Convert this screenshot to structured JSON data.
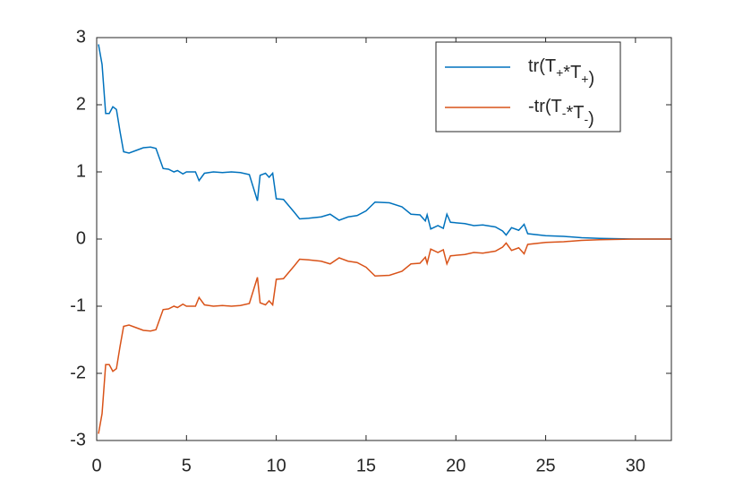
{
  "chart_data": {
    "type": "line",
    "x": [
      0.1,
      0.3,
      0.5,
      0.7,
      0.9,
      1.1,
      1.3,
      1.5,
      1.8,
      2.2,
      2.6,
      3.0,
      3.3,
      3.5,
      3.7,
      4.0,
      4.3,
      4.5,
      4.8,
      5.0,
      5.5,
      5.7,
      6.0,
      6.5,
      7.0,
      7.5,
      8.0,
      8.5,
      8.8,
      8.95,
      9.1,
      9.4,
      9.6,
      9.8,
      10.0,
      10.4,
      11.0,
      11.3,
      11.8,
      12.5,
      13.0,
      13.5,
      14.0,
      14.5,
      15.0,
      15.5,
      16.3,
      17.0,
      17.5,
      18.0,
      18.3,
      18.4,
      18.6,
      19.0,
      19.3,
      19.5,
      19.7,
      20.5,
      21.0,
      21.5,
      22.2,
      22.6,
      22.8,
      23.1,
      23.5,
      23.8,
      24.0,
      25.0,
      26.0,
      27.0,
      28.0,
      30.0,
      32.0
    ],
    "series": [
      {
        "name": "tr(T_+*T_+)",
        "color": "#0072bd",
        "values": [
          2.9,
          2.6,
          1.87,
          1.87,
          1.97,
          1.93,
          1.6,
          1.3,
          1.28,
          1.32,
          1.36,
          1.37,
          1.35,
          1.2,
          1.05,
          1.04,
          1.0,
          1.02,
          0.97,
          1.0,
          1.0,
          0.87,
          0.98,
          1.0,
          0.99,
          1.0,
          0.99,
          0.96,
          0.7,
          0.57,
          0.95,
          0.98,
          0.92,
          0.98,
          0.6,
          0.59,
          0.4,
          0.3,
          0.31,
          0.33,
          0.37,
          0.28,
          0.33,
          0.35,
          0.42,
          0.55,
          0.54,
          0.48,
          0.37,
          0.36,
          0.27,
          0.36,
          0.15,
          0.2,
          0.16,
          0.37,
          0.25,
          0.23,
          0.2,
          0.21,
          0.18,
          0.12,
          0.06,
          0.17,
          0.13,
          0.22,
          0.08,
          0.05,
          0.04,
          0.02,
          0.01,
          0.0,
          0.0
        ]
      },
      {
        "name": "-tr(T_-*T_-)",
        "color": "#d95319",
        "values": [
          -2.9,
          -2.6,
          -1.87,
          -1.87,
          -1.97,
          -1.93,
          -1.6,
          -1.3,
          -1.28,
          -1.32,
          -1.36,
          -1.37,
          -1.35,
          -1.2,
          -1.05,
          -1.04,
          -1.0,
          -1.02,
          -0.97,
          -1.0,
          -1.0,
          -0.87,
          -0.98,
          -1.0,
          -0.99,
          -1.0,
          -0.99,
          -0.96,
          -0.7,
          -0.57,
          -0.95,
          -0.98,
          -0.92,
          -0.98,
          -0.6,
          -0.59,
          -0.4,
          -0.3,
          -0.31,
          -0.33,
          -0.37,
          -0.28,
          -0.33,
          -0.35,
          -0.42,
          -0.55,
          -0.54,
          -0.48,
          -0.37,
          -0.36,
          -0.27,
          -0.36,
          -0.15,
          -0.2,
          -0.16,
          -0.37,
          -0.25,
          -0.23,
          -0.2,
          -0.21,
          -0.18,
          -0.12,
          -0.06,
          -0.17,
          -0.13,
          -0.22,
          -0.08,
          -0.05,
          -0.04,
          -0.02,
          -0.01,
          0.0,
          0.0
        ]
      }
    ],
    "xlim": [
      0,
      32
    ],
    "xticks": [
      0,
      5,
      10,
      15,
      20,
      25,
      30
    ],
    "ylim": [
      -3,
      3
    ],
    "yticks": [
      -3,
      -2,
      -1,
      0,
      1,
      2,
      3
    ],
    "legend": "top-right"
  }
}
